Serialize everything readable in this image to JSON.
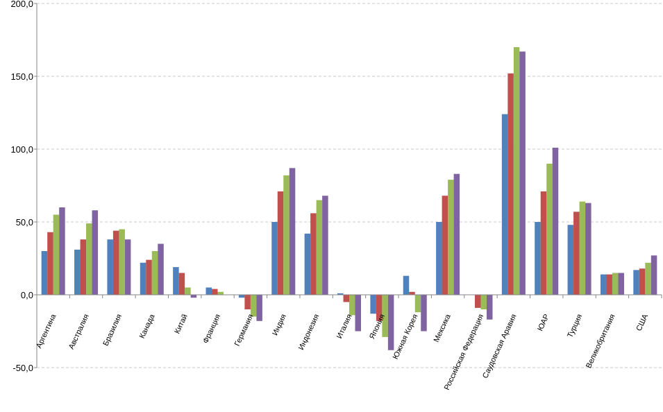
{
  "chart_data": {
    "type": "bar",
    "title": "",
    "xlabel": "",
    "ylabel": "",
    "ylim": [
      -50,
      200
    ],
    "yticks": [
      -50,
      0,
      50,
      100,
      150,
      200
    ],
    "ytick_labels": [
      "-50,0",
      "0,0",
      "50,0",
      "100,0",
      "150,0",
      "200,0"
    ],
    "grid": true,
    "legend": "none",
    "categories": [
      "Аргентина",
      "Австралия",
      "Бразилия",
      "Канада",
      "Китай",
      "Франция",
      "Германия",
      "Индия",
      "Индонезия",
      "Италия",
      "Япония",
      "Южная Корея",
      "Мексика",
      "Российская Федерация",
      "Саудовская Аравия",
      "ЮАР",
      "Турция",
      "Великобритания",
      "США"
    ],
    "series": [
      {
        "color": "#4f81bd",
        "values": [
          30,
          31,
          38,
          22,
          19,
          5,
          -2,
          50,
          42,
          1,
          -13,
          13,
          50,
          0,
          124,
          50,
          48,
          14,
          17
        ]
      },
      {
        "color": "#c0504d",
        "values": [
          43,
          38,
          44,
          24,
          15,
          4,
          -10,
          71,
          56,
          -5,
          -18,
          2,
          68,
          -9,
          152,
          71,
          57,
          14,
          18
        ]
      },
      {
        "color": "#9bbb59",
        "values": [
          55,
          49,
          45,
          30,
          5,
          2,
          -15,
          82,
          65,
          -14,
          -29,
          -12,
          79,
          -10,
          170,
          90,
          64,
          15,
          22
        ]
      },
      {
        "color": "#8064a2",
        "values": [
          60,
          58,
          38,
          35,
          -2,
          0,
          -18,
          87,
          68,
          -25,
          -38,
          -25,
          83,
          -17,
          167,
          101,
          63,
          15,
          27
        ]
      }
    ]
  }
}
